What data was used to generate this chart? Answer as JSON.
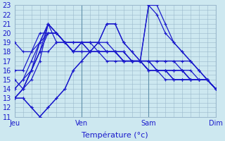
{
  "background_color": "#cde8f0",
  "plot_bg_color": "#cde8f0",
  "grid_color": "#9ab8cc",
  "line_color": "#1a1acc",
  "marker": "+",
  "xlabel": "Température (°c)",
  "ylim": [
    11,
    23
  ],
  "yticks": [
    11,
    12,
    13,
    14,
    15,
    16,
    17,
    18,
    19,
    20,
    21,
    22,
    23
  ],
  "day_labels": [
    "Jeu",
    "Ven",
    "Sam",
    "Dim"
  ],
  "day_positions": [
    0,
    24,
    48,
    72
  ],
  "xlim": [
    0,
    72
  ],
  "series": [
    {
      "x": [
        0,
        3,
        6,
        9,
        12,
        15,
        18,
        21,
        24,
        27,
        30,
        33,
        36,
        39,
        42,
        45,
        48,
        51,
        54,
        57,
        60,
        63,
        66,
        69,
        72
      ],
      "y": [
        13,
        14,
        15,
        17,
        21,
        20,
        19,
        18,
        18,
        18,
        18,
        18,
        18,
        18,
        17,
        17,
        17,
        17,
        17,
        17,
        16,
        16,
        15,
        15,
        14
      ]
    },
    {
      "x": [
        0,
        3,
        6,
        9,
        12,
        15,
        18,
        21,
        24,
        27,
        30,
        33,
        36,
        39,
        42,
        45,
        48,
        51,
        54,
        57,
        60,
        63,
        66,
        69,
        72
      ],
      "y": [
        14,
        15,
        16,
        18,
        21,
        20,
        19,
        18,
        18,
        18,
        18,
        18,
        18,
        17,
        17,
        17,
        17,
        16,
        16,
        16,
        16,
        15,
        15,
        15,
        14
      ]
    },
    {
      "x": [
        0,
        3,
        6,
        9,
        12,
        15,
        18,
        21,
        24,
        27,
        30,
        33,
        36,
        39,
        42,
        45,
        48,
        51,
        54,
        57,
        60,
        63,
        66,
        69,
        72
      ],
      "y": [
        14,
        15,
        17,
        19,
        21,
        19,
        19,
        18,
        18,
        18,
        18,
        18,
        18,
        17,
        17,
        17,
        16,
        16,
        16,
        16,
        16,
        15,
        15,
        15,
        14
      ]
    },
    {
      "x": [
        0,
        3,
        6,
        9,
        12,
        15,
        18,
        21,
        24,
        27,
        30,
        33,
        36,
        39,
        42,
        45,
        48,
        51,
        54,
        57,
        60,
        63,
        66,
        69,
        72
      ],
      "y": [
        16,
        16,
        18,
        19,
        21,
        20,
        19,
        18,
        19,
        19,
        19,
        19,
        18,
        18,
        17,
        17,
        17,
        16,
        16,
        16,
        16,
        15,
        15,
        15,
        14
      ]
    },
    {
      "x": [
        0,
        3,
        6,
        9,
        12,
        15,
        18,
        21,
        24,
        27,
        30,
        33,
        36,
        39,
        42,
        45,
        48,
        51,
        54,
        57,
        60,
        63,
        66,
        69,
        72
      ],
      "y": [
        13,
        14,
        16,
        19,
        20,
        20,
        19,
        19,
        19,
        19,
        19,
        18,
        18,
        18,
        17,
        17,
        16,
        16,
        16,
        15,
        15,
        15,
        15,
        15,
        14
      ]
    },
    {
      "x": [
        0,
        3,
        6,
        9,
        12,
        15,
        18,
        21,
        24,
        27,
        30,
        33,
        36,
        39,
        42,
        45,
        48,
        51,
        54,
        57,
        60,
        63,
        66,
        69,
        72
      ],
      "y": [
        13,
        14,
        16,
        18,
        20,
        20,
        19,
        19,
        19,
        18,
        18,
        18,
        18,
        17,
        17,
        17,
        16,
        16,
        15,
        15,
        15,
        15,
        15,
        15,
        14
      ]
    },
    {
      "x": [
        0,
        3,
        6,
        9,
        12,
        15,
        18,
        21,
        24,
        27,
        30,
        33,
        36,
        39,
        42,
        45,
        48,
        51,
        54,
        57,
        60,
        63,
        66,
        69,
        72
      ],
      "y": [
        15,
        14,
        16,
        18,
        18,
        19,
        19,
        19,
        19,
        19,
        18,
        18,
        18,
        17,
        17,
        17,
        16,
        16,
        16,
        15,
        15,
        15,
        15,
        15,
        14
      ]
    },
    {
      "x": [
        0,
        3,
        6,
        9,
        12,
        15,
        18,
        21,
        24,
        27,
        30,
        33,
        36,
        39,
        42,
        45,
        48,
        51,
        54,
        57,
        60,
        63,
        66,
        69,
        72
      ],
      "y": [
        19,
        18,
        18,
        20,
        20,
        20,
        19,
        18,
        19,
        18,
        18,
        17,
        17,
        17,
        17,
        17,
        17,
        17,
        17,
        17,
        17,
        17,
        16,
        15,
        14
      ]
    },
    {
      "x": [
        0,
        3,
        6,
        9,
        12,
        15,
        18,
        21,
        24,
        27,
        30,
        33,
        36,
        39,
        42,
        45,
        48,
        51,
        54,
        57,
        60,
        63,
        66,
        69,
        72
      ],
      "y": [
        13,
        13,
        12,
        11,
        12,
        13,
        14,
        16,
        17,
        18,
        19,
        21,
        21,
        19,
        18,
        17,
        23,
        23,
        21,
        19,
        18,
        17,
        16,
        15,
        14
      ]
    },
    {
      "x": [
        0,
        3,
        6,
        9,
        12,
        15,
        18,
        21,
        24,
        27,
        30,
        33,
        36,
        39,
        42,
        45,
        48,
        51,
        54,
        57,
        60,
        63,
        66,
        69,
        72
      ],
      "y": [
        13,
        13,
        12,
        11,
        12,
        13,
        14,
        16,
        17,
        18,
        19,
        21,
        21,
        19,
        18,
        17,
        23,
        22,
        20,
        19,
        18,
        17,
        16,
        15,
        14
      ]
    }
  ]
}
